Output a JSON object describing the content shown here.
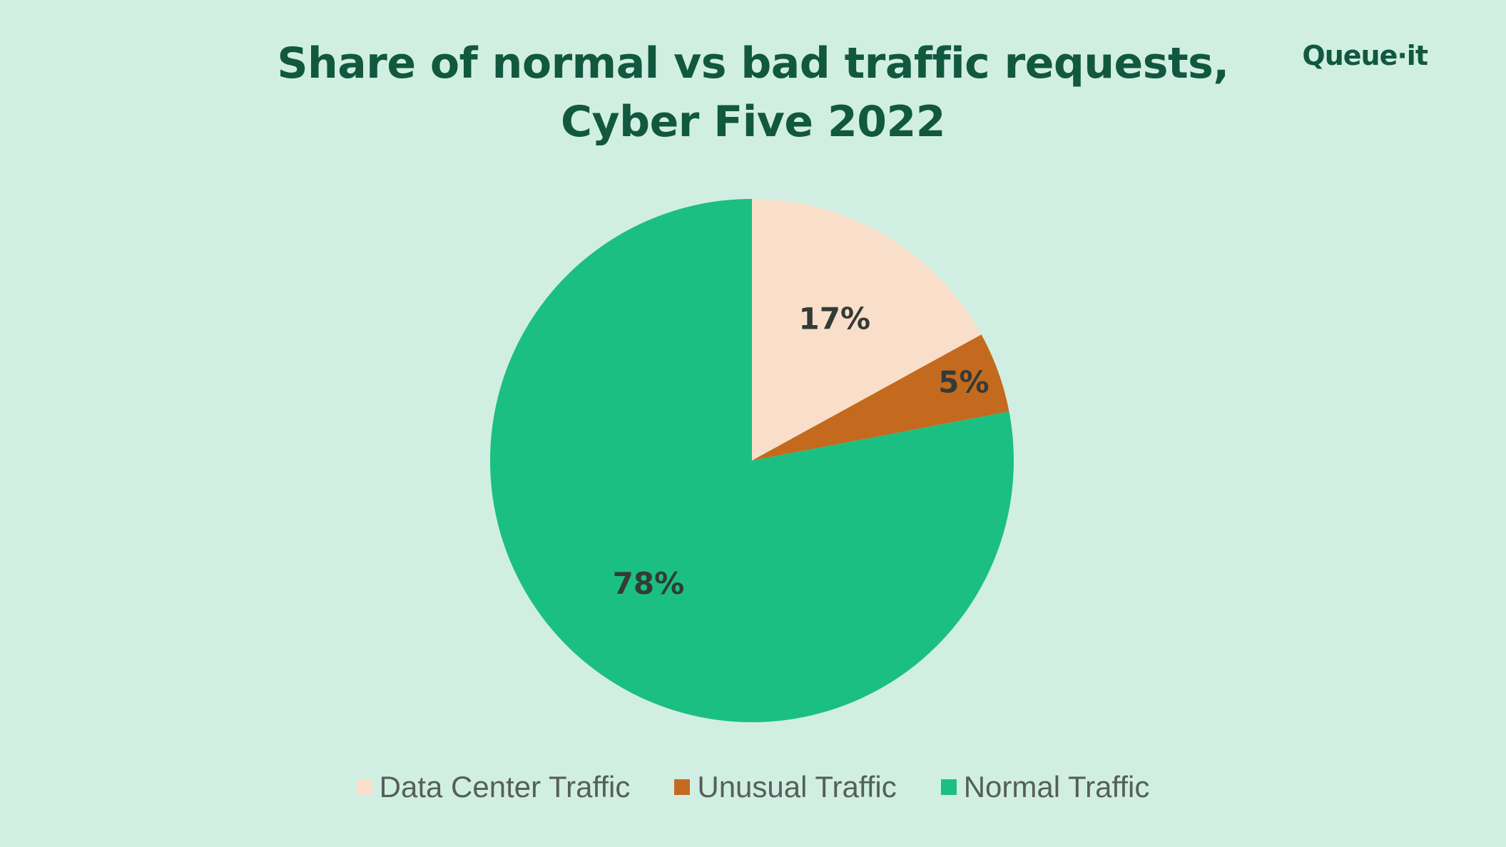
{
  "brand": {
    "logo_text": "Queue·it",
    "text_color": "#11583f",
    "background": "#d0efe2"
  },
  "chart_data": {
    "type": "pie",
    "title_lines": [
      "Share of normal vs bad traffic requests,",
      "Cyber Five 2022"
    ],
    "start_angle_deg": 0,
    "direction": "clockwise",
    "legend_position": "bottom",
    "slices": [
      {
        "label": "Data Center Traffic",
        "value": 17,
        "display": "17%",
        "color": "#f9dfc9"
      },
      {
        "label": "Unusual Traffic",
        "value": 5,
        "display": "5%",
        "color": "#c46a1e"
      },
      {
        "label": "Normal Traffic",
        "value": 78,
        "display": "78%",
        "color": "#1bbf81"
      }
    ]
  }
}
